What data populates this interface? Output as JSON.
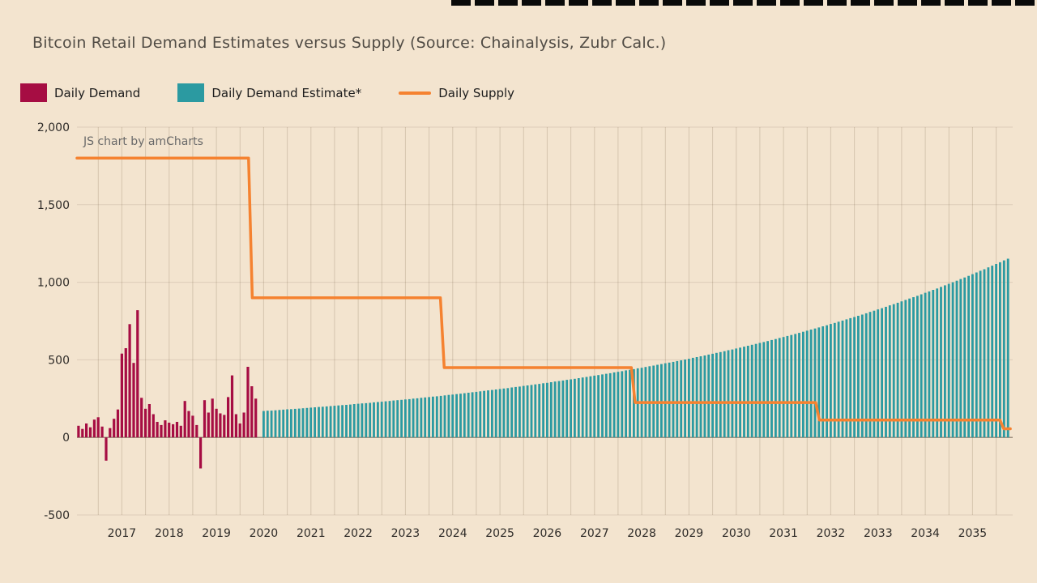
{
  "theme": {
    "background": "#f3e4cf",
    "grid_line_vertical": "rgba(80,55,30,0.18)",
    "grid_line_horizontal": "rgba(80,55,30,0.13)",
    "zero_line": "rgba(60,45,30,0.6)",
    "axis_text": "#2e2b28"
  },
  "watermark": "JS chart by amCharts",
  "chart_data": {
    "type": "mixed",
    "title": "Bitcoin Retail Demand Estimates versus Supply (Source: Chainalysis, Zubr Calc.)",
    "legend_position": "top",
    "x_axis": {
      "min": 2016.55,
      "max": 2036.35,
      "unit": "year",
      "year_labels": [
        "2017",
        "2018",
        "2019",
        "2020",
        "2021",
        "2022",
        "2023",
        "2024",
        "2025",
        "2026",
        "2027",
        "2028",
        "2029",
        "2030",
        "2031",
        "2032",
        "2033",
        "2034",
        "2035"
      ]
    },
    "y_axis": {
      "min": -500,
      "max": 2000,
      "ticks": [
        {
          "value": -500,
          "label": "-500"
        },
        {
          "value": 0,
          "label": "0"
        },
        {
          "value": 500,
          "label": "500"
        },
        {
          "value": 1000,
          "label": "1,000"
        },
        {
          "value": 1500,
          "label": "1,500"
        },
        {
          "value": 2000,
          "label": "2,000"
        }
      ]
    },
    "grid": {
      "vertical_interval_years": 0.5,
      "horizontal_interval": 500
    },
    "series": [
      {
        "name": "Daily Demand",
        "type": "column",
        "color": "#a60d43",
        "x_start": 2016.583,
        "x_step": 0.083333,
        "values": [
          75,
          55,
          90,
          65,
          115,
          130,
          70,
          -150,
          60,
          120,
          180,
          540,
          575,
          730,
          480,
          820,
          255,
          185,
          215,
          150,
          100,
          80,
          110,
          95,
          85,
          100,
          75,
          235,
          170,
          140,
          80,
          -200,
          240,
          160,
          250,
          185,
          155,
          145,
          260,
          400,
          150,
          90,
          160,
          455,
          330,
          250
        ]
      },
      {
        "name": "Daily Demand Estimate*",
        "type": "column",
        "color": "#2b9aa1",
        "x_start": 2020.5,
        "x_step": 0.083333,
        "values": [
          170,
          172,
          173,
          175,
          177,
          179,
          181,
          182,
          184,
          186,
          188,
          190,
          192,
          194,
          196,
          198,
          200,
          202,
          204,
          206,
          208,
          210,
          212,
          215,
          217,
          219,
          221,
          223,
          226,
          228,
          230,
          233,
          235,
          238,
          240,
          242,
          245,
          247,
          250,
          252,
          255,
          258,
          260,
          263,
          265,
          268,
          271,
          274,
          276,
          279,
          282,
          285,
          288,
          291,
          294,
          297,
          300,
          303,
          306,
          309,
          312,
          315,
          318,
          322,
          325,
          328,
          332,
          335,
          338,
          342,
          345,
          349,
          352,
          356,
          360,
          363,
          367,
          371,
          374,
          378,
          382,
          386,
          390,
          394,
          398,
          402,
          406,
          410,
          414,
          419,
          423,
          427,
          432,
          436,
          440,
          445,
          449,
          454,
          459,
          463,
          468,
          473,
          478,
          482,
          487,
          492,
          497,
          502,
          507,
          513,
          518,
          523,
          528,
          534,
          539,
          545,
          550,
          556,
          562,
          567,
          573,
          579,
          585,
          591,
          597,
          603,
          609,
          615,
          621,
          628,
          634,
          641,
          647,
          654,
          660,
          667,
          674,
          681,
          688,
          695,
          702,
          709,
          716,
          723,
          731,
          738,
          746,
          753,
          761,
          769,
          776,
          784,
          792,
          800,
          809,
          817,
          825,
          833,
          842,
          851,
          859,
          868,
          877,
          886,
          895,
          904,
          913,
          922,
          932,
          941,
          951,
          960,
          970,
          980,
          990,
          1000,
          1010,
          1021,
          1031,
          1041,
          1052,
          1063,
          1074,
          1084,
          1096,
          1107,
          1118,
          1129,
          1141,
          1152
        ]
      },
      {
        "name": "Daily Supply",
        "type": "line",
        "color": "#f58230",
        "points": [
          [
            2016.55,
            1800
          ],
          [
            2020.18,
            1800
          ],
          [
            2020.26,
            900
          ],
          [
            2024.24,
            900
          ],
          [
            2024.32,
            450
          ],
          [
            2028.28,
            450
          ],
          [
            2028.36,
            225
          ],
          [
            2032.18,
            225
          ],
          [
            2032.26,
            112
          ],
          [
            2036.08,
            112
          ],
          [
            2036.16,
            56
          ],
          [
            2036.3,
            56
          ]
        ]
      }
    ]
  }
}
